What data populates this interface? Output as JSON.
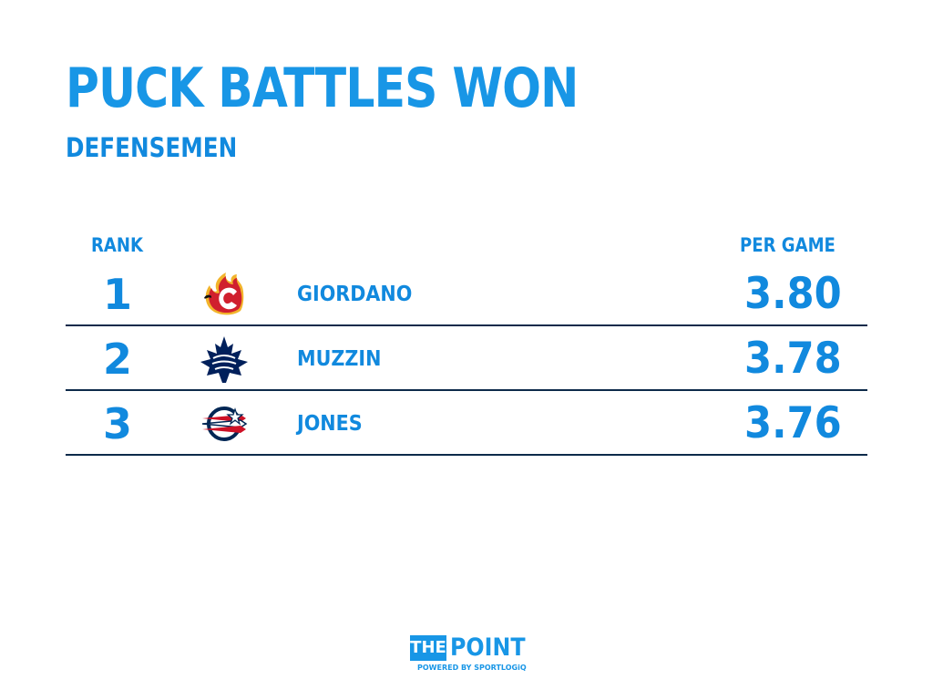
{
  "title": "PUCK BATTLES WON",
  "subtitle": "DEFENSEMEN",
  "table": {
    "rank_header": "RANK",
    "value_header": "PER GAME",
    "rows": [
      {
        "rank": "1",
        "team_logo": "flames-logo-icon",
        "player": "GIORDANO",
        "per_game": "3.80"
      },
      {
        "rank": "2",
        "team_logo": "maple-leafs-logo-icon",
        "player": "MUZZIN",
        "per_game": "3.78"
      },
      {
        "rank": "3",
        "team_logo": "blue-jackets-logo-icon",
        "player": "JONES",
        "per_game": "3.76"
      }
    ]
  },
  "footer": {
    "brand_the": "THE",
    "brand_point": "POINT",
    "powered_by": "POWERED BY SPORTLOGiQ"
  },
  "colors": {
    "accent": "#1896e6",
    "text": "#1189de",
    "divider": "#0d2a4a",
    "background": "#ffffff"
  }
}
